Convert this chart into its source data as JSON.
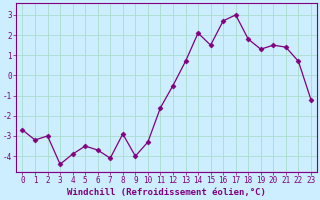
{
  "x": [
    0,
    1,
    2,
    3,
    4,
    5,
    6,
    7,
    8,
    9,
    10,
    11,
    12,
    13,
    14,
    15,
    16,
    17,
    18,
    19,
    20,
    21,
    22,
    23
  ],
  "y": [
    -2.7,
    -3.2,
    -3.0,
    -4.4,
    -3.9,
    -3.5,
    -3.7,
    -4.1,
    -2.9,
    -4.0,
    -3.3,
    -1.6,
    -0.5,
    0.7,
    2.1,
    1.5,
    2.7,
    3.0,
    1.8,
    1.3,
    1.5,
    1.4,
    0.7,
    -1.2
  ],
  "line_color": "#800080",
  "marker": "D",
  "marker_size": 2.5,
  "linewidth": 0.9,
  "xlabel": "Windchill (Refroidissement éolien,°C)",
  "xlabel_fontsize": 6.5,
  "tick_fontsize": 5.5,
  "ylim": [
    -4.8,
    3.6
  ],
  "yticks": [
    -4,
    -3,
    -2,
    -1,
    0,
    1,
    2,
    3
  ],
  "xlim": [
    -0.5,
    23.5
  ],
  "bg_color": "#cceeff",
  "grid_color": "#aaddcc",
  "spine_color": "#800080",
  "fig_bg": "#cceeff"
}
